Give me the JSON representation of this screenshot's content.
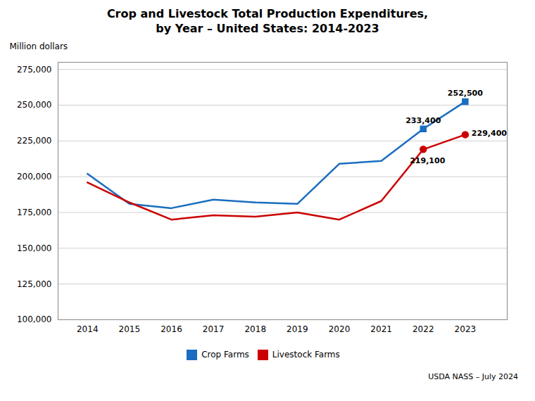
{
  "chart_data": {
    "type": "line",
    "title": "Crop and Livestock Total Production Expenditures,\nby Year – United States: 2014-2023",
    "ylabel": "Million dollars",
    "caption": "USDA NASS – July 2024",
    "x": [
      2014,
      2015,
      2016,
      2017,
      2018,
      2019,
      2020,
      2021,
      2022,
      2023
    ],
    "series": [
      {
        "name": "Crop Farms",
        "color": "#1a6dc0",
        "marker": "square",
        "values": [
          202000,
          181000,
          178000,
          184000,
          182000,
          181000,
          209000,
          211000,
          233400,
          252500
        ]
      },
      {
        "name": "Livestock Farms",
        "color": "#cc0000",
        "marker": "circle",
        "values": [
          196000,
          182000,
          170000,
          173000,
          172000,
          175000,
          170000,
          183000,
          219100,
          229400
        ]
      }
    ],
    "annotations": [
      {
        "series": "Crop Farms",
        "x": 2022,
        "y": 233400,
        "text": "233,400"
      },
      {
        "series": "Crop Farms",
        "x": 2023,
        "y": 252500,
        "text": "252,500"
      },
      {
        "series": "Livestock Farms",
        "x": 2022,
        "y": 219100,
        "text": "219,100"
      },
      {
        "series": "Livestock Farms",
        "x": 2023,
        "y": 229400,
        "text": "229,400"
      }
    ],
    "xlim": [
      2013.3,
      2024.0
    ],
    "xticks": [
      2014,
      2015,
      2016,
      2017,
      2018,
      2019,
      2020,
      2021,
      2022,
      2023
    ],
    "ylim": [
      100000,
      280000
    ],
    "yticks": [
      {
        "value": 100000,
        "label": "100,000"
      },
      {
        "value": 125000,
        "label": "125,000"
      },
      {
        "value": 150000,
        "label": "150,000"
      },
      {
        "value": 175000,
        "label": "175,000"
      },
      {
        "value": 200000,
        "label": "200,000"
      },
      {
        "value": 225000,
        "label": "225,000"
      },
      {
        "value": 250000,
        "label": "250,000"
      },
      {
        "value": 275000,
        "label": "275,000"
      }
    ],
    "grid": true,
    "legend": "bottom"
  }
}
